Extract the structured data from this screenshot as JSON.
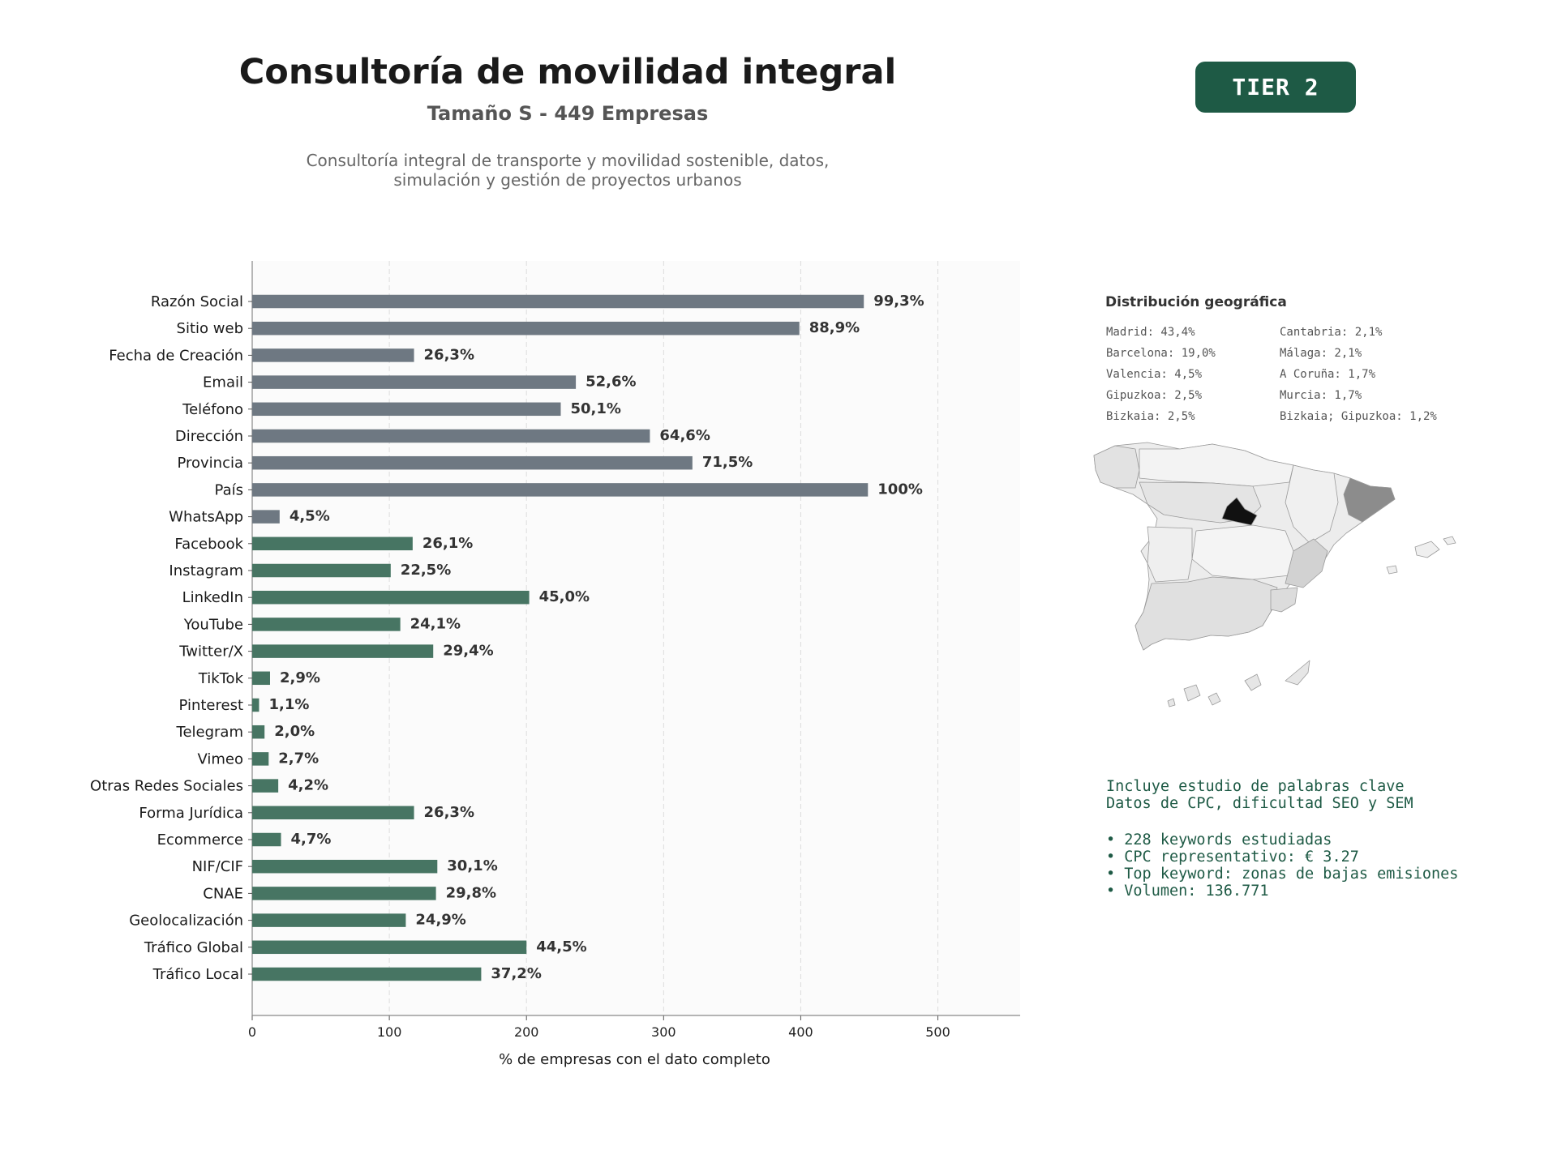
{
  "header": {
    "title": "Consultoría de movilidad integral",
    "subtitle": "Tamaño S - 449 Empresas",
    "description_line1": "Consultoría integral de transporte y movilidad sostenible, datos,",
    "description_line2": "simulación y gestión de proyectos urbanos",
    "tier": "TIER 2"
  },
  "colors": {
    "gray_bar": "#6e7882",
    "green_bar": "#477563",
    "accent": "#1e5a45",
    "map_highlight": "#111111"
  },
  "chart_data": {
    "type": "bar",
    "orientation": "horizontal",
    "xlabel": "% de empresas con el dato completo",
    "xlim": [
      0,
      560
    ],
    "xticks": [
      0,
      100,
      200,
      300,
      400,
      500
    ],
    "grid": "vertical dashed",
    "categories": [
      "Razón Social",
      "Sitio web",
      "Fecha de Creación",
      "Email",
      "Teléfono",
      "Dirección",
      "Provincia",
      "País",
      "WhatsApp",
      "Facebook",
      "Instagram",
      "LinkedIn",
      "YouTube",
      "Twitter/X",
      "TikTok",
      "Pinterest",
      "Telegram",
      "Vimeo",
      "Otras Redes Sociales",
      "Forma Jurídica",
      "Ecommerce",
      "NIF/CIF",
      "CNAE",
      "Geolocalización",
      "Tráfico Global",
      "Tráfico Local"
    ],
    "values": [
      446,
      399,
      118,
      236,
      225,
      290,
      321,
      449,
      20,
      117,
      101,
      202,
      108,
      132,
      13,
      5,
      9,
      12,
      19,
      118,
      21,
      135,
      134,
      112,
      200,
      167
    ],
    "labels": [
      "99,3%",
      "88,9%",
      "26,3%",
      "52,6%",
      "50,1%",
      "64,6%",
      "71,5%",
      "100%",
      "4,5%",
      "26,1%",
      "22,5%",
      "45,0%",
      "24,1%",
      "29,4%",
      "2,9%",
      "1,1%",
      "2,0%",
      "2,7%",
      "4,2%",
      "26,3%",
      "4,7%",
      "30,1%",
      "29,8%",
      "24,9%",
      "44,5%",
      "37,2%"
    ],
    "bar_colors": [
      "gray",
      "gray",
      "gray",
      "gray",
      "gray",
      "gray",
      "gray",
      "gray",
      "gray",
      "green",
      "green",
      "green",
      "green",
      "green",
      "green",
      "green",
      "green",
      "green",
      "green",
      "green",
      "green",
      "green",
      "green",
      "green",
      "green",
      "green"
    ]
  },
  "geo": {
    "title": "Distribución geográfica",
    "col1": [
      "Madrid: 43,4%",
      "Barcelona: 19,0%",
      "Valencia: 4,5%",
      "Gipuzkoa: 2,5%",
      "Bizkaia: 2,5%"
    ],
    "col2": [
      "Cantabria: 2,1%",
      "Málaga: 2,1%",
      "A Coruña: 1,7%",
      "Murcia: 1,7%",
      "Bizkaia; Gipuzkoa: 1,2%"
    ]
  },
  "keywords": {
    "line1": "Incluye estudio de palabras clave",
    "line2": "Datos de CPC, dificultad SEO y SEM",
    "bullets": [
      "• 228 keywords estudiadas",
      "• CPC representativo: € 3.27",
      "• Top keyword: zonas de bajas emisiones",
      "• Volumen: 136.771"
    ]
  }
}
